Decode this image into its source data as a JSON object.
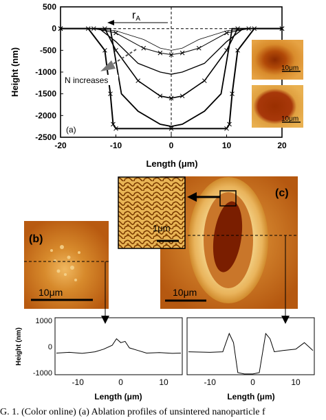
{
  "figure_a": {
    "panel_label": "(a)",
    "ylabel": "Height (nm)",
    "xlabel": "Length (μm)",
    "x_ticks": [
      "-20",
      "-10",
      "0",
      "10",
      "20"
    ],
    "y_ticks": [
      "500",
      "0",
      "-500",
      "-1000",
      "-1500",
      "-2000",
      "-2500"
    ],
    "annotation_ra": "r",
    "annotation_ra_sub": "A",
    "annotation_n": "N increases",
    "inset_scale_1": "10μm",
    "inset_scale_2": "10μm"
  },
  "figure_b": {
    "panel_label": "(b)",
    "scale_label": "10μm"
  },
  "figure_c": {
    "panel_label": "(c)",
    "scale_label": "10μm",
    "zoom_scale_label": "1μm"
  },
  "profile_left": {
    "ylabel": "Height (nm)",
    "xlabel": "Length (μm)",
    "y_ticks": [
      "1000",
      "0",
      "-1000"
    ],
    "x_ticks": [
      "-10",
      "0",
      "10"
    ]
  },
  "profile_right": {
    "xlabel": "Length (μm)",
    "x_ticks": [
      "-10",
      "0",
      "10"
    ]
  },
  "caption": "G. 1. (Color online) (a) Ablation profiles of unsintered nanoparticle f",
  "colors": {
    "afm_dark": "#8a2a00",
    "afm_mid": "#d07a18",
    "afm_light": "#f2c25a"
  },
  "chart_data": [
    {
      "type": "line",
      "xlabel": "Length (μm)",
      "ylabel": "Height (nm)",
      "xlim": [
        -20,
        20
      ],
      "ylim": [
        -2500,
        500
      ],
      "series": [
        {
          "x": [
            -20,
            -15,
            -10,
            -5,
            -2,
            0,
            2,
            5,
            10,
            15,
            20
          ],
          "values": [
            0,
            0,
            -50,
            -250,
            -450,
            -500,
            -450,
            -250,
            -50,
            0,
            0
          ]
        },
        {
          "x": [
            -20,
            -14,
            -10,
            -5,
            -2,
            0,
            2,
            5,
            10,
            14,
            20
          ],
          "values": [
            0,
            0,
            -100,
            -450,
            -560,
            -600,
            -560,
            -450,
            -100,
            0,
            0
          ]
        },
        {
          "x": [
            -20,
            -13,
            -10,
            -6,
            -2,
            0,
            2,
            6,
            10,
            13,
            20
          ],
          "values": [
            0,
            0,
            -300,
            -800,
            -1000,
            -1050,
            -1000,
            -800,
            -300,
            0,
            0
          ]
        },
        {
          "x": [
            -20,
            -12,
            -10,
            -6,
            -2,
            0,
            2,
            6,
            10,
            12,
            20
          ],
          "values": [
            0,
            0,
            -500,
            -1200,
            -1550,
            -1600,
            -1550,
            -1200,
            -500,
            0,
            0
          ]
        },
        {
          "x": [
            -20,
            -11,
            -9,
            -6,
            -2,
            0,
            2,
            6,
            9,
            11,
            20
          ],
          "values": [
            0,
            0,
            -1500,
            -1900,
            -2200,
            -2250,
            -2200,
            -1900,
            -1500,
            0,
            0
          ]
        },
        {
          "x": [
            -20,
            -15,
            -12,
            -11,
            -10.5,
            -10,
            0,
            10,
            10.5,
            11,
            12,
            15,
            20
          ],
          "values": [
            0,
            0,
            -500,
            -1500,
            -2200,
            -2300,
            -2300,
            -2300,
            -2200,
            -1500,
            -500,
            0,
            0
          ]
        }
      ]
    },
    {
      "type": "line",
      "xlabel": "Length (μm)",
      "ylabel": "Height (nm)",
      "xlim": [
        -15,
        14
      ],
      "ylim": [
        -1000,
        1000
      ],
      "series": [
        {
          "x": [
            -15,
            -12,
            -9,
            -6,
            -4,
            -2,
            -1,
            0,
            1,
            2,
            4,
            6,
            9,
            12,
            14
          ],
          "values": [
            -250,
            -220,
            -260,
            -200,
            -100,
            50,
            300,
            150,
            200,
            -50,
            -150,
            -250,
            -230,
            -260,
            -250
          ]
        }
      ]
    },
    {
      "type": "line",
      "xlabel": "Length (μm)",
      "xlim": [
        -15,
        14
      ],
      "ylim": [
        -1000,
        1000
      ],
      "series": [
        {
          "x": [
            -15,
            -10,
            -7,
            -5.5,
            -4.5,
            -3.5,
            -2,
            0,
            1.5,
            3,
            4,
            5,
            7,
            10,
            12,
            14
          ],
          "values": [
            -200,
            -220,
            -200,
            500,
            150,
            -1000,
            -1050,
            -1050,
            -1000,
            500,
            300,
            -200,
            -150,
            -100,
            150,
            -150
          ]
        }
      ]
    }
  ]
}
